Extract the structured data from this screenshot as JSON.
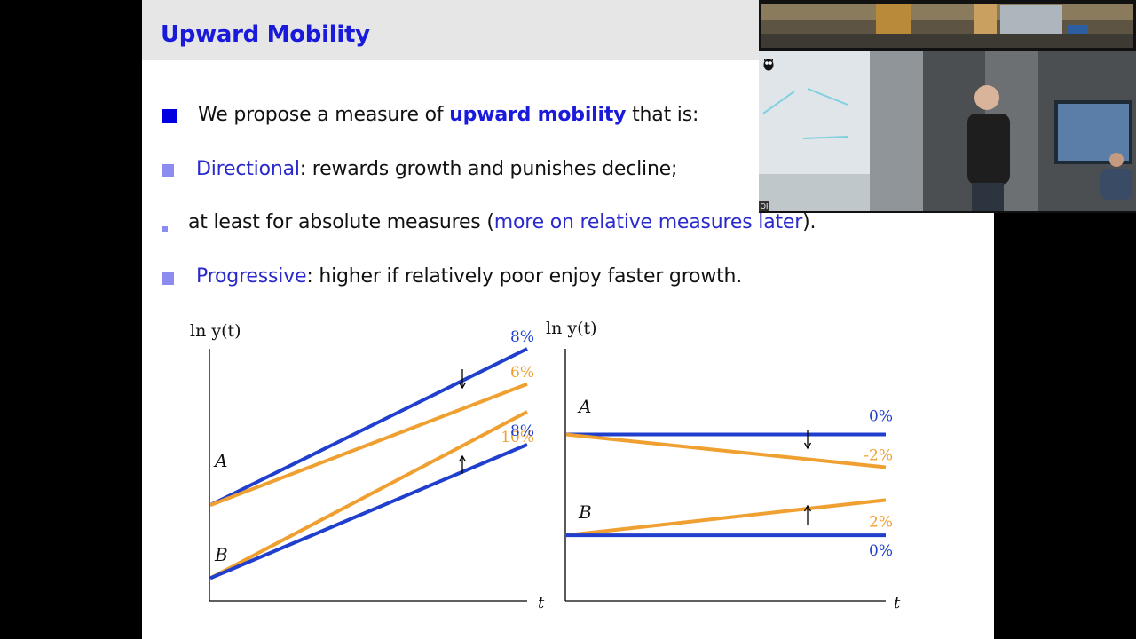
{
  "slide": {
    "title": "Upward Mobility",
    "bullets": [
      {
        "pre": "We propose a measure of ",
        "highlight": "upward mobility",
        "post": " that is:"
      },
      {
        "highlight": "Directional",
        "post": ": rewards growth and punishes decline;"
      },
      {
        "pre": "at least for absolute measures (",
        "highlight": "more on relative measures later",
        "post": ")."
      },
      {
        "highlight": "Progressive",
        "post": ": higher if relatively poor enjoy faster growth."
      }
    ]
  },
  "colors": {
    "title": "#1a1adb",
    "bullet_primary": "#0000e0",
    "bullet_secondary": "#8c8cf0",
    "blue_line": "#1f3fcc",
    "orange_line": "#f0a030"
  },
  "chart_data": [
    {
      "type": "line",
      "ylabel": "ln y(t)",
      "xlabel": "t",
      "point_labels": [
        "A",
        "B"
      ],
      "series": [
        {
          "name": "A",
          "rate": "8%",
          "color": "#1f3fcc",
          "x": [
            0,
            1
          ],
          "y": [
            0.38,
            1.0
          ]
        },
        {
          "name": "A",
          "rate": "6%",
          "color": "#f0a030",
          "x": [
            0,
            1
          ],
          "y": [
            0.38,
            0.86
          ]
        },
        {
          "name": "B",
          "rate": "10%",
          "color": "#f0a030",
          "x": [
            0,
            1
          ],
          "y": [
            0.09,
            0.75
          ]
        },
        {
          "name": "B",
          "rate": "8%",
          "color": "#1f3fcc",
          "x": [
            0,
            1
          ],
          "y": [
            0.09,
            0.62
          ]
        }
      ]
    },
    {
      "type": "line",
      "ylabel": "ln y(t)",
      "xlabel": "t",
      "point_labels": [
        "A",
        "B"
      ],
      "series": [
        {
          "name": "A",
          "rate": "0%",
          "color": "#1f3fcc",
          "x": [
            0,
            1
          ],
          "y": [
            0.66,
            0.66
          ]
        },
        {
          "name": "A",
          "rate": "-2%",
          "color": "#f0a030",
          "x": [
            0,
            1
          ],
          "y": [
            0.66,
            0.53
          ]
        },
        {
          "name": "B",
          "rate": "2%",
          "color": "#f0a030",
          "x": [
            0,
            1
          ],
          "y": [
            0.26,
            0.4
          ]
        },
        {
          "name": "B",
          "rate": "0%",
          "color": "#1f3fcc",
          "x": [
            0,
            1
          ],
          "y": [
            0.26,
            0.26
          ]
        }
      ]
    }
  ],
  "webcam": {
    "label": "OI",
    "icon": "owl-logo-icon"
  }
}
